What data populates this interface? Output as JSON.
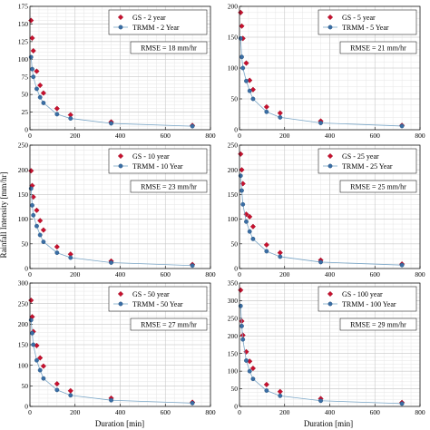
{
  "figure": {
    "xlabel": "Duration [min]",
    "ylabel": "Rainfall Intensity [mm/hr]"
  },
  "chart_data": [
    {
      "type": "scatter",
      "xlim": [
        0,
        800
      ],
      "ylim": [
        0,
        175
      ],
      "xticks": [
        0,
        200,
        400,
        600,
        800
      ],
      "yticks": [
        0,
        25,
        50,
        75,
        100,
        125,
        150,
        175
      ],
      "grid": true,
      "legend_position": "top-right",
      "series": [
        {
          "name": "GS - 2 year",
          "marker": "diamond",
          "color": "#c8102e",
          "x": [
            5,
            10,
            15,
            30,
            45,
            60,
            120,
            180,
            360,
            720
          ],
          "y": [
            155,
            130,
            112,
            83,
            63,
            52,
            30,
            21,
            11,
            6
          ]
        },
        {
          "name": "TRMM - 2 Year",
          "marker": "circle",
          "color": "#3a6ea5",
          "line": true,
          "x": [
            5,
            10,
            15,
            30,
            45,
            60,
            120,
            180,
            360,
            720
          ],
          "y": [
            103,
            86,
            75,
            58,
            46,
            38,
            22,
            16,
            9,
            5
          ]
        }
      ],
      "annotation": "RMSE = 18 mm/hr"
    },
    {
      "type": "scatter",
      "xlim": [
        0,
        800
      ],
      "ylim": [
        0,
        200
      ],
      "xticks": [
        0,
        200,
        400,
        600,
        800
      ],
      "yticks": [
        0,
        50,
        100,
        150,
        200
      ],
      "grid": true,
      "legend_position": "top-right",
      "series": [
        {
          "name": "GS - 5 year",
          "marker": "diamond",
          "color": "#c8102e",
          "x": [
            5,
            10,
            15,
            30,
            45,
            60,
            120,
            180,
            360,
            720
          ],
          "y": [
            190,
            168,
            148,
            108,
            80,
            65,
            37,
            27,
            14,
            7
          ]
        },
        {
          "name": "TRMM - 5 Year",
          "marker": "circle",
          "color": "#3a6ea5",
          "line": true,
          "x": [
            5,
            10,
            15,
            30,
            45,
            60,
            120,
            180,
            360,
            720
          ],
          "y": [
            148,
            118,
            100,
            79,
            63,
            50,
            29,
            20,
            11,
            6
          ]
        }
      ],
      "annotation": "RMSE = 21 mm/hr"
    },
    {
      "type": "scatter",
      "xlim": [
        0,
        800
      ],
      "ylim": [
        0,
        250
      ],
      "xticks": [
        0,
        200,
        400,
        600,
        800
      ],
      "yticks": [
        0,
        50,
        100,
        150,
        200,
        250
      ],
      "grid": true,
      "legend_position": "top-right",
      "series": [
        {
          "name": "GS - 10 year",
          "marker": "diamond",
          "color": "#c8102e",
          "x": [
            5,
            10,
            15,
            30,
            45,
            60,
            120,
            180,
            360,
            720
          ],
          "y": [
            198,
            168,
            145,
            118,
            97,
            78,
            44,
            29,
            15,
            8
          ]
        },
        {
          "name": "TRMM - 10 Year",
          "marker": "circle",
          "color": "#3a6ea5",
          "line": true,
          "x": [
            5,
            10,
            15,
            30,
            45,
            60,
            120,
            180,
            360,
            720
          ],
          "y": [
            162,
            128,
            108,
            86,
            68,
            54,
            32,
            22,
            12,
            6
          ]
        }
      ],
      "annotation": "RMSE = 23 mm/hr"
    },
    {
      "type": "scatter",
      "xlim": [
        0,
        800
      ],
      "ylim": [
        0,
        250
      ],
      "xticks": [
        0,
        200,
        400,
        600,
        800
      ],
      "yticks": [
        0,
        50,
        100,
        150,
        200,
        250
      ],
      "grid": true,
      "legend_position": "top-right",
      "series": [
        {
          "name": "GS - 25 year",
          "marker": "diamond",
          "color": "#c8102e",
          "x": [
            5,
            10,
            15,
            30,
            45,
            60,
            120,
            180,
            360,
            720
          ],
          "y": [
            232,
            200,
            172,
            110,
            105,
            85,
            48,
            32,
            17,
            9
          ]
        },
        {
          "name": "TRMM - 25 Year",
          "marker": "circle",
          "color": "#3a6ea5",
          "line": true,
          "x": [
            5,
            10,
            15,
            30,
            45,
            60,
            120,
            180,
            360,
            720
          ],
          "y": [
            188,
            158,
            130,
            95,
            75,
            60,
            35,
            24,
            13,
            7
          ]
        }
      ],
      "annotation": "RMSE = 25 mm/hr"
    },
    {
      "type": "scatter",
      "xlim": [
        0,
        800
      ],
      "ylim": [
        0,
        300
      ],
      "xticks": [
        0,
        200,
        400,
        600,
        800
      ],
      "yticks": [
        0,
        50,
        100,
        150,
        200,
        250,
        300
      ],
      "grid": true,
      "legend_position": "top-right",
      "series": [
        {
          "name": "GS - 50 year",
          "marker": "diamond",
          "color": "#c8102e",
          "x": [
            5,
            10,
            15,
            30,
            45,
            60,
            120,
            180,
            360,
            720
          ],
          "y": [
            258,
            218,
            182,
            148,
            118,
            98,
            55,
            38,
            20,
            10
          ]
        },
        {
          "name": "TRMM - 50 Year",
          "marker": "circle",
          "color": "#3a6ea5",
          "line": true,
          "x": [
            5,
            10,
            15,
            30,
            45,
            60,
            120,
            180,
            360,
            720
          ],
          "y": [
            210,
            178,
            150,
            112,
            88,
            68,
            40,
            27,
            15,
            8
          ]
        }
      ],
      "annotation": "RMSE = 27 mm/hr"
    },
    {
      "type": "scatter",
      "xlim": [
        0,
        800
      ],
      "ylim": [
        0,
        350
      ],
      "xticks": [
        0,
        200,
        400,
        600,
        800
      ],
      "yticks": [
        0,
        50,
        100,
        150,
        200,
        250,
        300,
        350
      ],
      "grid": true,
      "legend_position": "top-right",
      "series": [
        {
          "name": "GS - 100 year",
          "marker": "diamond",
          "color": "#c8102e",
          "x": [
            5,
            10,
            15,
            30,
            45,
            60,
            120,
            180,
            360,
            720
          ],
          "y": [
            330,
            242,
            202,
            155,
            128,
            108,
            62,
            42,
            22,
            11
          ]
        },
        {
          "name": "TRMM - 100 Year",
          "marker": "circle",
          "color": "#3a6ea5",
          "line": true,
          "x": [
            5,
            10,
            15,
            30,
            45,
            60,
            120,
            180,
            360,
            720
          ],
          "y": [
            285,
            228,
            190,
            130,
            100,
            78,
            45,
            30,
            16,
            8
          ]
        }
      ],
      "annotation": "RMSE = 29 mm/hr"
    }
  ]
}
